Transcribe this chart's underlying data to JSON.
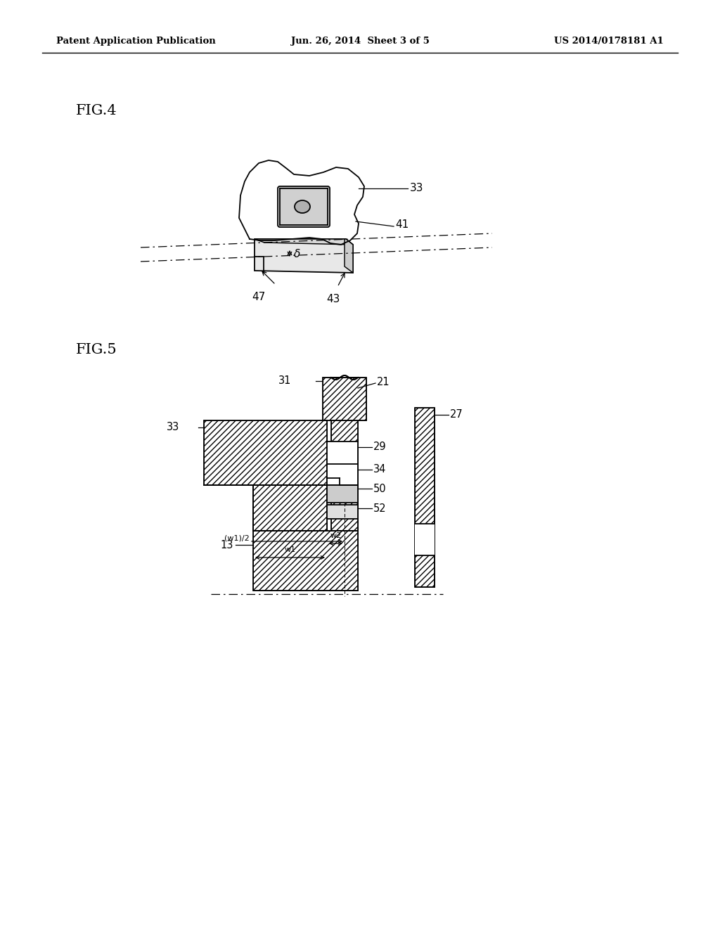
{
  "background_color": "#ffffff",
  "header_left": "Patent Application Publication",
  "header_center": "Jun. 26, 2014  Sheet 3 of 5",
  "header_right": "US 2014/0178181 A1",
  "fig4_label": "FIG.4",
  "fig5_label": "FIG.5"
}
